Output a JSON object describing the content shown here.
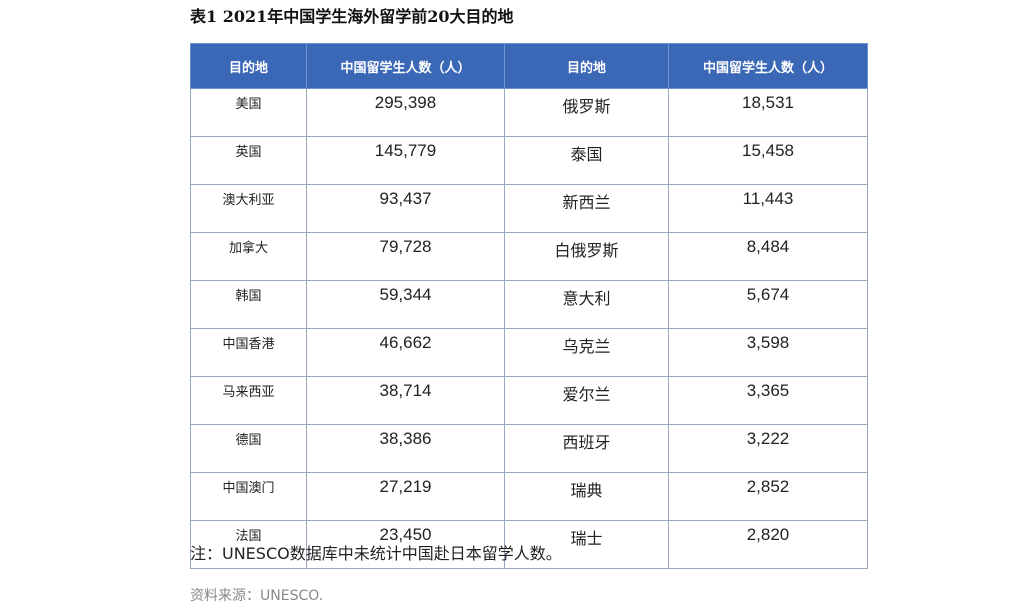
{
  "caption": "表1 2021年中国学生海外留学前20大目的地",
  "headers": [
    "目的地",
    "中国留学生人数（人）",
    "目的地",
    "中国留学生人数（人）"
  ],
  "rows": [
    {
      "dest_a": "美国",
      "count_a": "295,398",
      "dest_b": "俄罗斯",
      "count_b": "18,531"
    },
    {
      "dest_a": "英国",
      "count_a": "145,779",
      "dest_b": "泰国",
      "count_b": "15,458"
    },
    {
      "dest_a": "澳大利亚",
      "count_a": "93,437",
      "dest_b": "新西兰",
      "count_b": "11,443"
    },
    {
      "dest_a": "加拿大",
      "count_a": "79,728",
      "dest_b": "白俄罗斯",
      "count_b": "8,484"
    },
    {
      "dest_a": "韩国",
      "count_a": "59,344",
      "dest_b": "意大利",
      "count_b": "5,674"
    },
    {
      "dest_a": "中国香港",
      "count_a": "46,662",
      "dest_b": "乌克兰",
      "count_b": "3,598"
    },
    {
      "dest_a": "马来西亚",
      "count_a": "38,714",
      "dest_b": "爱尔兰",
      "count_b": "3,365"
    },
    {
      "dest_a": "德国",
      "count_a": "38,386",
      "dest_b": "西班牙",
      "count_b": "3,222"
    },
    {
      "dest_a": "中国澳门",
      "count_a": "27,219",
      "dest_b": "瑞典",
      "count_b": "2,852"
    },
    {
      "dest_a": "法国",
      "count_a": "23,450",
      "dest_b": "瑞士",
      "count_b": "2,820"
    }
  ],
  "note": "注：UNESCO数据库中未统计中国赴日本留学人数。",
  "source": "资料来源：UNESCO.",
  "colors": {
    "header_bg": "#3a67b6",
    "header_text": "#ffffff",
    "border": "#9aa8bf",
    "source_text": "#888888"
  }
}
